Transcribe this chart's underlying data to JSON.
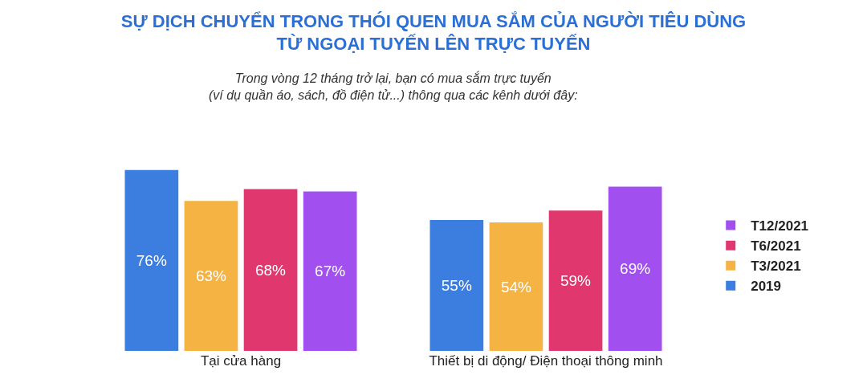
{
  "chart_data": {
    "type": "bar",
    "title": "SỰ DỊCH CHUYỂN TRONG THÓI QUEN MUA SẮM CỦA NGƯỜI TIÊU DÙNG\nTỪ NGOẠI TUYẾN LÊN TRỰC TUYẾN",
    "subtitle": "Trong vòng 12 tháng trở lại, bạn có mua sắm trực tuyến\n(ví dụ quần áo, sách, đồ điện tử...) thông qua các kênh dưới đây:",
    "categories": [
      "Tại cửa hàng",
      "Thiết bị di động/ Điện thoại thông minh"
    ],
    "series": [
      {
        "name": "2019",
        "color": "#3b7ee0",
        "values": [
          76,
          55
        ],
        "value_labels": [
          "76%",
          "55%"
        ]
      },
      {
        "name": "T3/2021",
        "color": "#f4b342",
        "values": [
          63,
          54
        ],
        "value_labels": [
          "63%",
          "54%"
        ]
      },
      {
        "name": "T6/2021",
        "color": "#e0376f",
        "values": [
          68,
          59
        ],
        "value_labels": [
          "68%",
          "59%"
        ]
      },
      {
        "name": "T12/2021",
        "color": "#a24ff0",
        "values": [
          67,
          69
        ],
        "value_labels": [
          "67%",
          "69%"
        ]
      }
    ],
    "legend": "right",
    "grid": false
  }
}
